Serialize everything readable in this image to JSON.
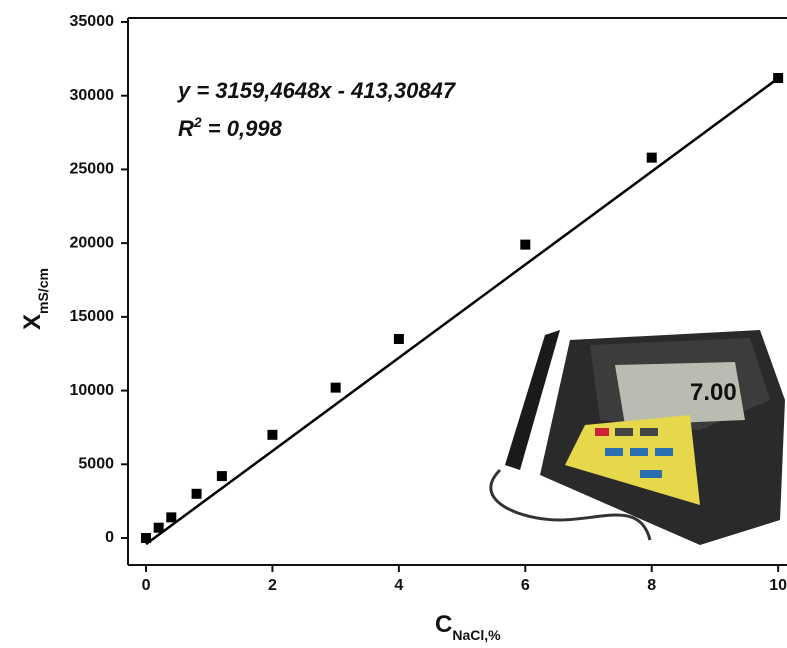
{
  "chart_data": {
    "type": "scatter",
    "x_label": {
      "text": "C",
      "sub": "NaCl,%"
    },
    "y_label": {
      "text": "X",
      "sub": "mS/cm"
    },
    "annotations": [
      {
        "text": "y = 3159,4648x - 413,30847"
      },
      {
        "text": "R",
        "sup": "2",
        "rest": " = 0,998"
      }
    ],
    "series": [
      {
        "color": "#000000",
        "marker": "square",
        "x": [
          0,
          0.2,
          0.4,
          0.8,
          1.2,
          2,
          3,
          4,
          6,
          8,
          10
        ],
        "values": [
          0,
          700,
          1400,
          3000,
          4200,
          7000,
          10200,
          13500,
          19900,
          25800,
          31200
        ]
      },
      {
        "color": "#000000",
        "marker": "line",
        "x": [
          0,
          10.05
        ],
        "values": [
          -413,
          31340
        ]
      }
    ],
    "xlim": [
      -0.285,
      10.14
    ],
    "ylim": [
      -1830,
      35270
    ],
    "xticks": [
      0,
      2,
      4,
      6,
      8,
      10
    ],
    "yticks": [
      0,
      5000,
      10000,
      15000,
      20000,
      25000,
      30000,
      35000
    ]
  }
}
